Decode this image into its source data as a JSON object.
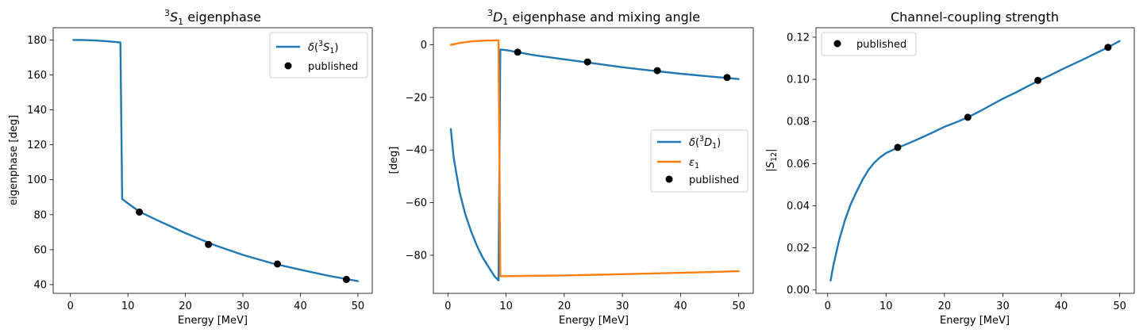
{
  "colors": {
    "blue": "#1f77b4",
    "orange": "#ff7f0e",
    "marker": "#000000"
  },
  "chart_data": [
    {
      "type": "line",
      "title": "³S₁ eigenphase",
      "xlabel": "Energy [MeV]",
      "ylabel": "eigenphase [deg]",
      "xlim": [
        -3,
        52.5
      ],
      "ylim": [
        35,
        187
      ],
      "xticks": [
        0,
        10,
        20,
        30,
        40,
        50
      ],
      "yticks": [
        40,
        60,
        80,
        100,
        120,
        140,
        160,
        180
      ],
      "legend": "top-right",
      "series": [
        {
          "name": "δ(³S₁)",
          "kind": "line",
          "color": "#1f77b4",
          "x": [
            0.5,
            2,
            4,
            6,
            8,
            8.7,
            9,
            10,
            12,
            15,
            20,
            25,
            30,
            35,
            40,
            45,
            50
          ],
          "y": [
            180,
            180,
            179.8,
            179.4,
            178.8,
            178.5,
            89,
            86.5,
            81.8,
            77,
            69.5,
            62.7,
            57,
            52.3,
            48.5,
            45,
            42
          ]
        },
        {
          "name": "published",
          "kind": "scatter",
          "color": "#000000",
          "x": [
            12,
            24,
            36,
            48
          ],
          "y": [
            81.5,
            63,
            51.8,
            43
          ]
        }
      ]
    },
    {
      "type": "line",
      "title": "³D₁ eigenphase and mixing angle",
      "xlabel": "Energy [MeV]",
      "ylabel": "[deg]",
      "xlim": [
        -2.5,
        52.5
      ],
      "ylim": [
        -94.5,
        6.5
      ],
      "xticks": [
        0,
        10,
        20,
        30,
        40,
        50
      ],
      "yticks": [
        -80,
        -60,
        -40,
        -20,
        0
      ],
      "legend": "center-right",
      "series": [
        {
          "name": "δ(³D₁)",
          "kind": "line",
          "color": "#1f77b4",
          "x": [
            0.5,
            1,
            2,
            3,
            4,
            5,
            6,
            7,
            8,
            8.7,
            9,
            10,
            12,
            15,
            20,
            25,
            30,
            35,
            40,
            45,
            50
          ],
          "y": [
            -32,
            -43,
            -56,
            -64.5,
            -71,
            -76.5,
            -81,
            -84.5,
            -88,
            -89.6,
            -1.8,
            -2,
            -2.8,
            -4,
            -5.5,
            -7,
            -8.5,
            -9.8,
            -11,
            -12,
            -13
          ]
        },
        {
          "name": "ε₁",
          "kind": "line",
          "color": "#ff7f0e",
          "x": [
            0.5,
            2,
            4,
            6,
            8,
            8.7,
            9,
            15,
            20,
            30,
            40,
            50
          ],
          "y": [
            0,
            0.7,
            1.3,
            1.6,
            1.7,
            1.7,
            -88,
            -87.8,
            -87.7,
            -87.2,
            -86.7,
            -86.1
          ]
        },
        {
          "name": "published",
          "kind": "scatter",
          "color": "#000000",
          "x": [
            12,
            24,
            36,
            48
          ],
          "y": [
            -2.8,
            -6.5,
            -9.8,
            -12.4
          ]
        }
      ]
    },
    {
      "type": "line",
      "title": "Channel-coupling strength",
      "xlabel": "Energy [MeV]",
      "ylabel": "|S₁₂|",
      "xlim": [
        -2,
        52.5
      ],
      "ylim": [
        -0.0016,
        0.1245
      ],
      "xticks": [
        0,
        10,
        20,
        30,
        40,
        50
      ],
      "yticks": [
        0.0,
        0.02,
        0.04,
        0.06,
        0.08,
        0.1,
        0.12
      ],
      "ytick_labels": [
        "0.00",
        "0.02",
        "0.04",
        "0.06",
        "0.08",
        "0.10",
        "0.12"
      ],
      "legend": "top-left",
      "series": [
        {
          "name": "",
          "kind": "line",
          "color": "#1f77b4",
          "x": [
            0.5,
            1,
            2,
            3,
            4,
            5,
            6,
            7,
            8,
            9,
            10,
            11,
            12,
            14,
            16,
            18,
            20,
            22,
            24,
            26,
            28,
            30,
            32,
            35,
            38,
            40,
            44,
            48,
            50
          ],
          "y": [
            0.0045,
            0.012,
            0.024,
            0.0335,
            0.041,
            0.047,
            0.0525,
            0.057,
            0.0605,
            0.063,
            0.065,
            0.0663,
            0.0675,
            0.0698,
            0.0722,
            0.0748,
            0.0775,
            0.0796,
            0.082,
            0.0848,
            0.0878,
            0.0908,
            0.0935,
            0.0978,
            0.1018,
            0.1046,
            0.1098,
            0.1152,
            0.1182
          ]
        },
        {
          "name": "published",
          "kind": "scatter",
          "color": "#000000",
          "x": [
            12,
            24,
            36,
            48
          ],
          "y": [
            0.0677,
            0.082,
            0.0995,
            0.1152
          ]
        }
      ]
    }
  ]
}
